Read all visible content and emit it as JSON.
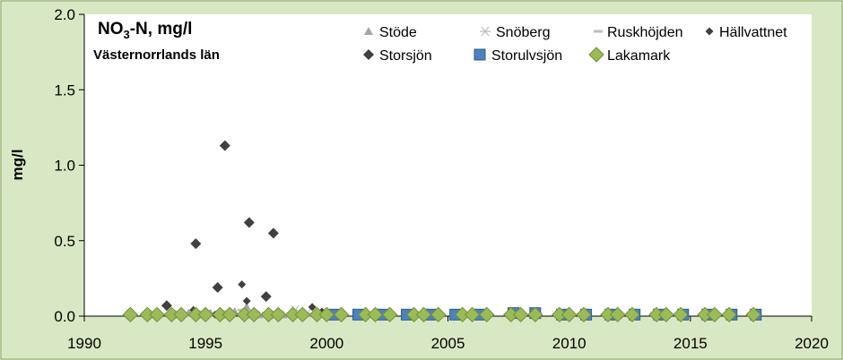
{
  "chart_data": {
    "type": "scatter",
    "title_prefix": "NO",
    "title_sub": "3",
    "title_suffix": "-N, mg/l",
    "subtitle": "Västernorrlands län",
    "xlabel": "",
    "ylabel": "mg/l",
    "xlim": [
      1990,
      2020
    ],
    "ylim": [
      0,
      2
    ],
    "xticks": [
      "1990",
      "1995",
      "2000",
      "2005",
      "2010",
      "2015",
      "2020"
    ],
    "yticks": [
      "0.0",
      "0.5",
      "1.0",
      "1.5",
      "2.0"
    ],
    "grid": false,
    "legend": "top-right",
    "series": [
      {
        "name": "Stöde",
        "marker": "triangle",
        "color": "#a6a6a6",
        "points": [
          [
            1994.3,
            0.02
          ],
          [
            1995.2,
            0.02
          ],
          [
            1996.2,
            0.03
          ],
          [
            1996.7,
            0.06
          ],
          [
            1997.2,
            0.01
          ],
          [
            1998.2,
            0.01
          ]
        ]
      },
      {
        "name": "Snöberg",
        "marker": "asterisk",
        "color": "#bfbfbf",
        "points": [
          [
            1991.9,
            0.01
          ],
          [
            1992.9,
            0.01
          ],
          [
            1993.9,
            0.01
          ],
          [
            1994.9,
            0.01
          ],
          [
            1995.9,
            0.01
          ],
          [
            1996.9,
            0.01
          ],
          [
            1997.9,
            0.01
          ],
          [
            1998.7,
            0.04
          ],
          [
            1999.2,
            0.02
          ],
          [
            1999.8,
            0.01
          ]
        ]
      },
      {
        "name": "Ruskhöjden",
        "marker": "dash",
        "color": "#bfbfbf",
        "points": [
          [
            1993.5,
            0.01
          ],
          [
            1994.5,
            0.01
          ],
          [
            1995.5,
            0.02
          ],
          [
            1996.0,
            0.03
          ],
          [
            1996.5,
            0.04
          ],
          [
            1997.5,
            0.02
          ],
          [
            1998.5,
            0.01
          ]
        ]
      },
      {
        "name": "Hällvattnet",
        "marker": "diamond-small",
        "color": "#404040",
        "points": [
          [
            1994.5,
            0.04
          ],
          [
            1995.4,
            0.01
          ],
          [
            1996.5,
            0.21
          ],
          [
            1996.7,
            0.1
          ],
          [
            1997.6,
            0.02
          ],
          [
            1999.4,
            0.06
          ],
          [
            1999.8,
            0.03
          ]
        ]
      },
      {
        "name": "Storsjön",
        "marker": "diamond",
        "color": "#404040",
        "points": [
          [
            1993.4,
            0.07
          ],
          [
            1994.6,
            0.48
          ],
          [
            1995.5,
            0.19
          ],
          [
            1995.8,
            1.13
          ],
          [
            1996.8,
            0.62
          ],
          [
            1997.5,
            0.13
          ],
          [
            1997.8,
            0.55
          ]
        ]
      },
      {
        "name": "Storulvsjön",
        "marker": "square",
        "color": "#4f81bd",
        "points": [
          [
            2000.3,
            0.01
          ],
          [
            2001.3,
            0.01
          ],
          [
            2002.3,
            0.01
          ],
          [
            2003.3,
            0.01
          ],
          [
            2004.3,
            0.01
          ],
          [
            2005.3,
            0.01
          ],
          [
            2006.3,
            0.01
          ],
          [
            2007.7,
            0.02
          ],
          [
            2008.6,
            0.02
          ],
          [
            2009.7,
            0.01
          ],
          [
            2010.7,
            0.01
          ],
          [
            2011.7,
            0.01
          ],
          [
            2012.7,
            0.01
          ],
          [
            2013.7,
            0.01
          ],
          [
            2014.7,
            0.01
          ],
          [
            2015.7,
            0.01
          ],
          [
            2016.7,
            0.01
          ],
          [
            2017.7,
            0.01
          ]
        ]
      },
      {
        "name": "Lakamark",
        "marker": "diamond-large",
        "color": "#9bbb59",
        "points": [
          [
            1991.9,
            0.01
          ],
          [
            1992.6,
            0.01
          ],
          [
            1993.0,
            0.01
          ],
          [
            1993.6,
            0.01
          ],
          [
            1994.0,
            0.01
          ],
          [
            1994.6,
            0.01
          ],
          [
            1995.0,
            0.01
          ],
          [
            1995.6,
            0.01
          ],
          [
            1996.0,
            0.01
          ],
          [
            1996.6,
            0.01
          ],
          [
            1997.0,
            0.01
          ],
          [
            1997.6,
            0.01
          ],
          [
            1998.0,
            0.01
          ],
          [
            1998.6,
            0.01
          ],
          [
            1999.0,
            0.01
          ],
          [
            1999.6,
            0.01
          ],
          [
            2000.0,
            0.01
          ],
          [
            2000.6,
            0.01
          ],
          [
            2001.6,
            0.01
          ],
          [
            2002.0,
            0.01
          ],
          [
            2002.6,
            0.01
          ],
          [
            2003.6,
            0.01
          ],
          [
            2004.0,
            0.01
          ],
          [
            2004.6,
            0.01
          ],
          [
            2005.6,
            0.01
          ],
          [
            2006.0,
            0.01
          ],
          [
            2006.6,
            0.01
          ],
          [
            2007.6,
            0.01
          ],
          [
            2008.0,
            0.01
          ],
          [
            2008.6,
            0.01
          ],
          [
            2009.6,
            0.01
          ],
          [
            2010.0,
            0.01
          ],
          [
            2010.6,
            0.01
          ],
          [
            2011.6,
            0.01
          ],
          [
            2012.0,
            0.01
          ],
          [
            2012.6,
            0.01
          ],
          [
            2013.6,
            0.01
          ],
          [
            2014.0,
            0.01
          ],
          [
            2014.6,
            0.01
          ],
          [
            2015.6,
            0.01
          ],
          [
            2016.0,
            0.01
          ],
          [
            2016.6,
            0.01
          ],
          [
            2017.6,
            0.01
          ]
        ]
      }
    ]
  }
}
